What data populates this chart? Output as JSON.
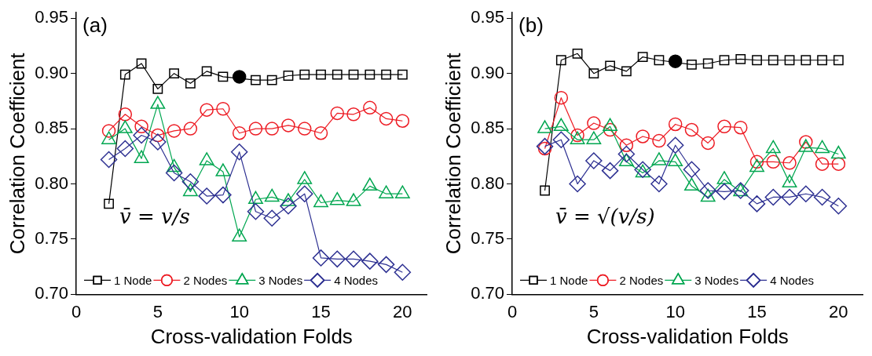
{
  "chart_data": [
    {
      "type": "line",
      "xlabel": "Cross-validation Folds",
      "ylabel": "Correlation Coefficient",
      "annotations": [
        "(a)",
        "v̄ = v/s"
      ],
      "x": [
        2,
        3,
        4,
        5,
        6,
        7,
        8,
        9,
        10,
        11,
        12,
        13,
        14,
        15,
        16,
        17,
        18,
        19,
        20
      ],
      "xlim": [
        0,
        21.5
      ],
      "xticks": [
        0,
        5,
        10,
        15,
        20
      ],
      "ylim": [
        0.7,
        0.955
      ],
      "yticks": [
        {
          "value": 0.7,
          "label": "0.70"
        },
        {
          "value": 0.75,
          "label": "0.75"
        },
        {
          "value": 0.8,
          "label": "0.80"
        },
        {
          "value": 0.85,
          "label": "0.85"
        },
        {
          "value": 0.9,
          "label": "0.90"
        },
        {
          "value": 0.95,
          "label": "0.95"
        }
      ],
      "legend": "bottom",
      "grid": false,
      "line_style": "solid",
      "series": [
        {
          "name": "1 Node",
          "color": "#000000",
          "marker": "square",
          "values": [
            0.782,
            0.899,
            0.909,
            0.886,
            0.9,
            0.891,
            0.902,
            0.897,
            null,
            0.894,
            0.894,
            0.898,
            0.899,
            0.899,
            0.899,
            0.899,
            0.899,
            0.899,
            0.899
          ]
        },
        {
          "name": "2 Nodes",
          "color": "#ed1c24",
          "marker": "circle",
          "values": [
            0.848,
            0.863,
            0.852,
            0.844,
            0.848,
            0.85,
            0.867,
            0.868,
            0.846,
            0.85,
            0.85,
            0.853,
            0.85,
            0.846,
            0.864,
            0.863,
            0.869,
            0.859,
            0.857
          ]
        },
        {
          "name": "3 Nodes",
          "color": "#00a650",
          "marker": "triangle",
          "values": [
            0.84,
            0.85,
            0.823,
            0.872,
            0.815,
            0.793,
            0.821,
            0.811,
            0.752,
            0.786,
            0.788,
            0.784,
            0.804,
            0.783,
            0.785,
            0.784,
            0.798,
            0.791,
            0.791
          ]
        },
        {
          "name": "4 Nodes",
          "color": "#2e3192",
          "marker": "diamond",
          "values": [
            0.822,
            0.832,
            0.844,
            0.838,
            0.81,
            0.802,
            0.789,
            0.79,
            0.829,
            0.775,
            0.769,
            0.78,
            0.791,
            0.733,
            0.732,
            0.732,
            0.73,
            0.727,
            0.72
          ]
        },
        {
          "type": "scatter",
          "color": "#000000",
          "marker": "circle",
          "x": [
            10
          ],
          "values": [
            0.897
          ]
        }
      ]
    },
    {
      "type": "line",
      "xlabel": "Cross-validation Folds",
      "ylabel": "Correlation Coefficient",
      "annotations": [
        "(b)",
        "v̄ = √(v/s)"
      ],
      "x": [
        2,
        3,
        4,
        5,
        6,
        7,
        8,
        9,
        10,
        11,
        12,
        13,
        14,
        15,
        16,
        17,
        18,
        19,
        20
      ],
      "xlim": [
        0,
        21.5
      ],
      "xticks": [
        0,
        5,
        10,
        15,
        20
      ],
      "ylim": [
        0.7,
        0.955
      ],
      "yticks": [
        {
          "value": 0.7,
          "label": "0.70"
        },
        {
          "value": 0.75,
          "label": "0.75"
        },
        {
          "value": 0.8,
          "label": "0.80"
        },
        {
          "value": 0.85,
          "label": "0.85"
        },
        {
          "value": 0.9,
          "label": "0.90"
        },
        {
          "value": 0.95,
          "label": "0.95"
        }
      ],
      "legend": "bottom",
      "grid": false,
      "line_style": "solid",
      "series": [
        {
          "name": "1 Node",
          "color": "#000000",
          "marker": "square",
          "values": [
            0.794,
            0.912,
            0.918,
            0.9,
            0.907,
            0.902,
            0.915,
            0.912,
            null,
            0.908,
            0.909,
            0.912,
            0.913,
            0.912,
            0.912,
            0.912,
            0.912,
            0.912,
            0.912
          ]
        },
        {
          "name": "2 Nodes",
          "color": "#ed1c24",
          "marker": "circle",
          "values": [
            0.832,
            0.878,
            0.844,
            0.855,
            0.849,
            0.835,
            0.843,
            0.839,
            0.854,
            0.849,
            0.837,
            0.852,
            0.851,
            0.82,
            0.82,
            0.819,
            0.838,
            0.818,
            0.818
          ]
        },
        {
          "name": "3 Nodes",
          "color": "#00a650",
          "marker": "triangle",
          "values": [
            0.85,
            0.852,
            0.84,
            0.84,
            0.852,
            0.82,
            0.81,
            0.821,
            0.82,
            0.798,
            0.788,
            0.804,
            0.793,
            0.815,
            0.832,
            0.801,
            0.833,
            0.832,
            0.827
          ]
        },
        {
          "name": "4 Nodes",
          "color": "#2e3192",
          "marker": "diamond",
          "values": [
            0.834,
            0.84,
            0.8,
            0.821,
            0.812,
            0.827,
            0.813,
            0.8,
            0.835,
            0.813,
            0.794,
            0.793,
            0.794,
            0.782,
            0.788,
            0.788,
            0.791,
            0.788,
            0.78
          ]
        },
        {
          "type": "scatter",
          "color": "#000000",
          "marker": "circle",
          "x": [
            10
          ],
          "values": [
            0.911
          ]
        }
      ]
    }
  ]
}
